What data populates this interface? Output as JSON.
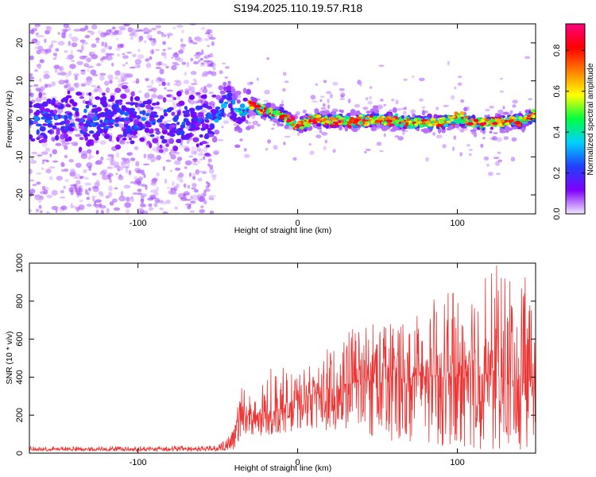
{
  "title": "S194.2025.110.19.57.R18",
  "chart_data": [
    {
      "type": "heatmap",
      "xlabel": "Height of straight line (km)",
      "ylabel": "Frequency (Hz)",
      "xlim": [
        -168,
        149
      ],
      "ylim": [
        -25,
        25
      ],
      "xticks": [
        "-100",
        "0",
        "100"
      ],
      "xtick_values": [
        -100,
        0,
        100
      ],
      "yticks": [
        "20",
        "10",
        "0",
        "-10",
        "-20"
      ],
      "ytick_values": [
        20,
        10,
        0,
        -10,
        -20
      ],
      "colorbar": {
        "label": "Normalized spectral amplitude",
        "range": [
          0.0,
          0.93
        ],
        "ticks": [
          "0.0",
          "0.2",
          "0.4",
          "0.6",
          "0.8"
        ],
        "tick_values": [
          0.0,
          0.2,
          0.4,
          0.6,
          0.8
        ],
        "colormap": [
          "#f2e8ff",
          "#8000ff",
          "#2040ff",
          "#00d0ff",
          "#00ff40",
          "#ffff00",
          "#ff8000",
          "#ff0000",
          "#ff0080"
        ]
      },
      "regions": [
        {
          "x": [
            -168,
            -52
          ],
          "description": "noise",
          "ridge_spread": 4.5,
          "max_amplitude": 0.3
        },
        {
          "x": [
            -52,
            -30
          ],
          "description": "onset",
          "ridge_spread": 3.5,
          "max_amplitude": 0.45
        },
        {
          "x": [
            -30,
            149
          ],
          "description": "signal",
          "ridge_spread": 1.5,
          "max_amplitude": 0.93
        }
      ],
      "ridge_frequency": [
        [
          -168,
          0
        ],
        [
          -100,
          0
        ],
        [
          -52,
          -1
        ],
        [
          -44,
          6
        ],
        [
          -38,
          1
        ],
        [
          -30,
          4
        ],
        [
          -20,
          2
        ],
        [
          -10,
          1
        ],
        [
          0,
          -2
        ],
        [
          10,
          0
        ],
        [
          20,
          -0.5
        ],
        [
          40,
          -0.5
        ],
        [
          50,
          0
        ],
        [
          60,
          -0.5
        ],
        [
          70,
          -1
        ],
        [
          90,
          -1
        ],
        [
          100,
          0
        ],
        [
          110,
          -1
        ],
        [
          120,
          -1
        ],
        [
          140,
          -0.5
        ],
        [
          149,
          1
        ]
      ]
    },
    {
      "type": "line",
      "xlabel": "Height of straight line (km)",
      "ylabel": "SNR (10 * v/v)",
      "xlim": [
        -168,
        149
      ],
      "ylim": [
        0,
        1000
      ],
      "xticks": [
        "-100",
        "0",
        "100"
      ],
      "xtick_values": [
        -100,
        0,
        100
      ],
      "yticks": [
        "0",
        "200",
        "400",
        "600",
        "800",
        "1000"
      ],
      "ytick_values": [
        0,
        200,
        400,
        600,
        800,
        1000
      ],
      "series": [
        {
          "color": "#ee3333",
          "envelope": [
            {
              "x": -168,
              "low": 10,
              "high": 35
            },
            {
              "x": -50,
              "low": 10,
              "high": 40
            },
            {
              "x": -40,
              "low": 20,
              "high": 120
            },
            {
              "x": -34,
              "low": 60,
              "high": 440
            },
            {
              "x": -28,
              "low": 60,
              "high": 260
            },
            {
              "x": -15,
              "low": 100,
              "high": 480
            },
            {
              "x": 0,
              "low": 120,
              "high": 420
            },
            {
              "x": 20,
              "low": 120,
              "high": 560
            },
            {
              "x": 40,
              "low": 100,
              "high": 700
            },
            {
              "x": 60,
              "low": 60,
              "high": 720
            },
            {
              "x": 80,
              "low": 40,
              "high": 800
            },
            {
              "x": 100,
              "low": 30,
              "high": 860
            },
            {
              "x": 125,
              "low": 10,
              "high": 1000
            },
            {
              "x": 149,
              "low": 10,
              "high": 900
            }
          ],
          "mean": [
            {
              "x": -168,
              "y": 20
            },
            {
              "x": -45,
              "y": 22
            },
            {
              "x": -36,
              "y": 200
            },
            {
              "x": -20,
              "y": 180
            },
            {
              "x": 0,
              "y": 280
            },
            {
              "x": 20,
              "y": 320
            },
            {
              "x": 40,
              "y": 380
            },
            {
              "x": 60,
              "y": 390
            },
            {
              "x": 80,
              "y": 400
            },
            {
              "x": 100,
              "y": 400
            },
            {
              "x": 120,
              "y": 410
            },
            {
              "x": 149,
              "y": 330
            }
          ]
        }
      ]
    }
  ]
}
